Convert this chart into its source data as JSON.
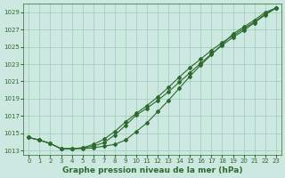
{
  "xlabel": "Graphe pression niveau de la mer (hPa)",
  "x": [
    0,
    1,
    2,
    3,
    4,
    5,
    6,
    7,
    8,
    9,
    10,
    11,
    12,
    13,
    14,
    15,
    16,
    17,
    18,
    19,
    20,
    21,
    22,
    23
  ],
  "line1": [
    1014.5,
    1014.2,
    1013.8,
    1013.2,
    1013.2,
    1013.2,
    1013.3,
    1013.5,
    1013.7,
    1014.2,
    1015.2,
    1016.2,
    1017.5,
    1018.8,
    1020.2,
    1021.6,
    1022.9,
    1024.1,
    1025.3,
    1026.5,
    1027.3,
    1028.1,
    1029.0,
    1029.5
  ],
  "line2": [
    1014.5,
    1014.2,
    1013.8,
    1013.2,
    1013.2,
    1013.3,
    1013.5,
    1013.9,
    1014.8,
    1015.9,
    1017.1,
    1017.9,
    1018.8,
    1019.8,
    1020.9,
    1022.0,
    1023.1,
    1024.2,
    1025.2,
    1026.1,
    1026.9,
    1027.8,
    1028.7,
    1029.5
  ],
  "line3": [
    1014.5,
    1014.2,
    1013.8,
    1013.2,
    1013.2,
    1013.3,
    1013.7,
    1014.3,
    1015.2,
    1016.3,
    1017.3,
    1018.2,
    1019.2,
    1020.3,
    1021.5,
    1022.6,
    1023.6,
    1024.6,
    1025.5,
    1026.3,
    1027.1,
    1027.9,
    1028.8,
    1029.5
  ],
  "line_color": "#2d6a2d",
  "bg_color": "#cce8e0",
  "grid_color": "#99ccbb",
  "ylim": [
    1012.5,
    1030.0
  ],
  "yticks": [
    1013,
    1015,
    1017,
    1019,
    1021,
    1023,
    1025,
    1027,
    1029
  ],
  "xticks": [
    0,
    1,
    2,
    3,
    4,
    5,
    6,
    7,
    8,
    9,
    10,
    11,
    12,
    13,
    14,
    15,
    16,
    17,
    18,
    19,
    20,
    21,
    22,
    23
  ],
  "tick_fontsize": 5.0,
  "label_fontsize": 6.5,
  "marker": "D",
  "marker_size": 2.0,
  "linewidth": 0.8
}
